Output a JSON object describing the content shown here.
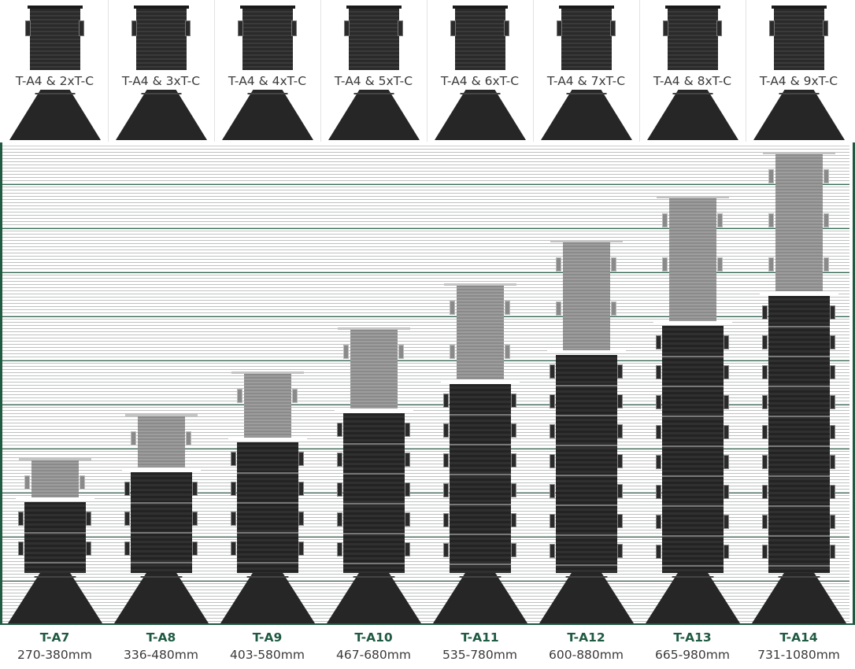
{
  "top_labels": [
    "T-A4 & 2xT-C",
    "T-A4 & 3xT-C",
    "T-A4 & 4xT-C",
    "T-A4 & 5xT-C",
    "T-A4 & 6xT-C",
    "T-A4 & 7xT-C",
    "T-A4 & 8xT-C",
    "T-A4 & 9xT-C"
  ],
  "pedestals": [
    {
      "name": "T-A7",
      "range": "270-380mm"
    },
    {
      "name": "T-A8",
      "range": "336-480mm"
    },
    {
      "name": "T-A9",
      "range": "403-580mm"
    },
    {
      "name": "T-A10",
      "range": "467-680mm"
    },
    {
      "name": "T-A11",
      "range": "535-780mm"
    },
    {
      "name": "T-A12",
      "range": "600-880mm"
    },
    {
      "name": "T-A13",
      "range": "665-980mm"
    },
    {
      "name": "T-A14",
      "range": "731-1080mm"
    }
  ],
  "colors": {
    "accent_green": "#1f5a42",
    "pedestal_dark": "#262626",
    "extension_grey": "#909090",
    "caption_text": "#3a3a3a"
  }
}
